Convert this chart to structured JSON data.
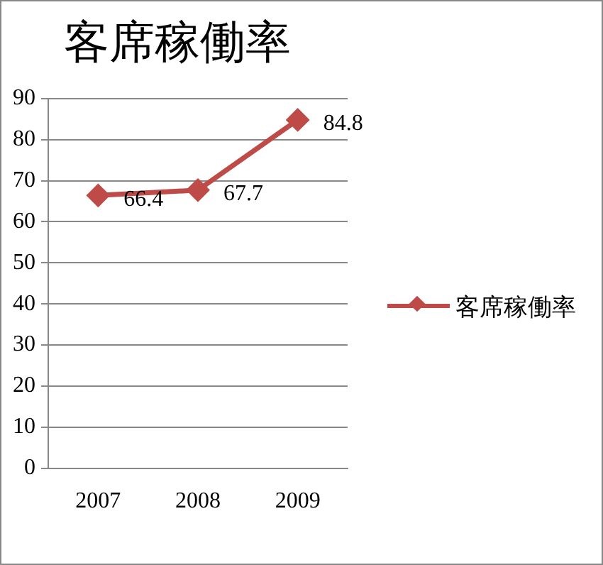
{
  "chart_data": {
    "type": "line",
    "title": "客席稼働率",
    "categories": [
      "2007",
      "2008",
      "2009"
    ],
    "series": [
      {
        "name": "客席稼働率",
        "color": "#be4b48",
        "values": [
          66.4,
          67.7,
          84.8
        ]
      }
    ],
    "ylim": [
      0,
      90
    ],
    "yticks": [
      0,
      10,
      20,
      30,
      40,
      50,
      60,
      70,
      80,
      90
    ],
    "grid": "y",
    "legend": "right",
    "marker": "diamond",
    "line_style": "solid",
    "data_labels": true
  }
}
